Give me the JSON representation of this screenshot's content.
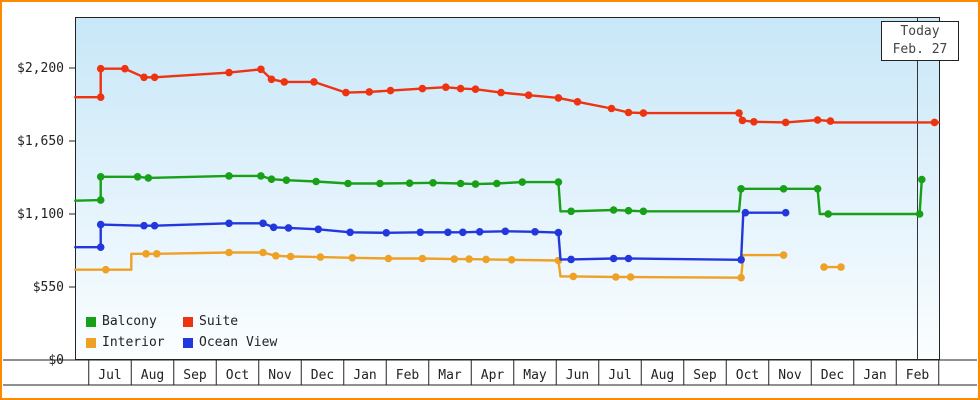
{
  "frame": {
    "border_color": "#ff8a00"
  },
  "chart_data": {
    "type": "line",
    "title": "",
    "y_axis": {
      "tick_values": [
        0,
        550,
        1100,
        1650,
        2200
      ],
      "tick_labels": [
        "$0",
        "$550",
        "$1,100",
        "$1,650",
        "$2,200"
      ],
      "min": 0,
      "max": 2580,
      "grid": false
    },
    "x_axis": {
      "month_labels": [
        "Jul",
        "Aug",
        "Sep",
        "Oct",
        "Nov",
        "Dec",
        "Jan",
        "Feb",
        "Mar",
        "Apr",
        "May",
        "Jun",
        "Jul",
        "Aug",
        "Sep",
        "Oct",
        "Nov",
        "Dec",
        "Jan",
        "Feb"
      ]
    },
    "today_marker": {
      "line1": "Today",
      "line2": "Feb. 27",
      "month_index": 19.5
    },
    "legend": [
      {
        "name": "Balcony",
        "color": "#18a018"
      },
      {
        "name": "Suite",
        "color": "#ee3311"
      },
      {
        "name": "Interior",
        "color": "#efa125"
      },
      {
        "name": "Ocean View",
        "color": "#2238dd"
      }
    ],
    "legend_position": "bottom-left",
    "series": [
      {
        "id": "interior",
        "name": "Interior",
        "color": "#efa125",
        "segments": [
          [
            [
              -0.32,
              680,
              0
            ],
            [
              0.4,
              680,
              1
            ],
            [
              1.0,
              680,
              0
            ],
            [
              1.0,
              800,
              0
            ],
            [
              1.35,
              800,
              1
            ],
            [
              1.6,
              800,
              1
            ],
            [
              3.3,
              810,
              1
            ],
            [
              4.1,
              810,
              1
            ],
            [
              4.4,
              785,
              1
            ],
            [
              4.75,
              780,
              1
            ],
            [
              5.45,
              775,
              1
            ],
            [
              6.2,
              770,
              1
            ],
            [
              7.05,
              765,
              1
            ],
            [
              7.85,
              765,
              1
            ],
            [
              8.6,
              760,
              1
            ],
            [
              8.95,
              760,
              1
            ],
            [
              9.35,
              758,
              1
            ],
            [
              9.95,
              755,
              1
            ],
            [
              11.05,
              750,
              1
            ],
            [
              11.1,
              630,
              0
            ],
            [
              11.4,
              630,
              1
            ],
            [
              12.4,
              625,
              1
            ],
            [
              12.75,
              625,
              1
            ],
            [
              15.35,
              620,
              1
            ],
            [
              15.4,
              790,
              0
            ],
            [
              16.35,
              790,
              1
            ]
          ],
          [
            [
              17.3,
              700,
              1
            ],
            [
              17.7,
              700,
              1
            ]
          ]
        ]
      },
      {
        "id": "ocean-view",
        "name": "Ocean View",
        "color": "#2238dd",
        "segments": [
          [
            [
              -0.32,
              850,
              0
            ],
            [
              0.28,
              850,
              1
            ],
            [
              0.28,
              1020,
              1
            ],
            [
              1.3,
              1012,
              1
            ],
            [
              1.55,
              1012,
              1
            ],
            [
              3.3,
              1030,
              1
            ],
            [
              4.1,
              1030,
              1
            ],
            [
              4.35,
              1000,
              1
            ],
            [
              4.7,
              995,
              1
            ],
            [
              5.4,
              985,
              1
            ],
            [
              6.15,
              962,
              1
            ],
            [
              7.0,
              958,
              1
            ],
            [
              7.8,
              962,
              1
            ],
            [
              8.45,
              962,
              1
            ],
            [
              8.8,
              962,
              1
            ],
            [
              9.2,
              966,
              1
            ],
            [
              9.8,
              970,
              1
            ],
            [
              10.5,
              966,
              1
            ],
            [
              11.05,
              960,
              1
            ],
            [
              11.1,
              758,
              0
            ],
            [
              11.35,
              758,
              1
            ],
            [
              12.35,
              765,
              1
            ],
            [
              12.7,
              765,
              1
            ],
            [
              15.35,
              755,
              1
            ],
            [
              15.4,
              1110,
              0
            ],
            [
              15.45,
              1110,
              1
            ],
            [
              16.4,
              1110,
              1
            ]
          ]
        ]
      },
      {
        "id": "balcony",
        "name": "Balcony",
        "color": "#18a018",
        "segments": [
          [
            [
              -0.32,
              1200,
              0
            ],
            [
              0.28,
              1205,
              1
            ],
            [
              0.28,
              1380,
              1
            ],
            [
              1.15,
              1380,
              1
            ],
            [
              1.4,
              1372,
              1
            ],
            [
              3.3,
              1387,
              1
            ],
            [
              4.05,
              1387,
              1
            ],
            [
              4.3,
              1362,
              1
            ],
            [
              4.65,
              1355,
              1
            ],
            [
              5.35,
              1345,
              1
            ],
            [
              6.1,
              1330,
              1
            ],
            [
              6.85,
              1330,
              1
            ],
            [
              7.55,
              1332,
              1
            ],
            [
              8.1,
              1335,
              1
            ],
            [
              8.75,
              1330,
              1
            ],
            [
              9.1,
              1325,
              1
            ],
            [
              9.6,
              1330,
              1
            ],
            [
              10.2,
              1340,
              1
            ],
            [
              11.05,
              1340,
              1
            ],
            [
              11.1,
              1120,
              0
            ],
            [
              11.35,
              1120,
              1
            ],
            [
              12.35,
              1130,
              1
            ],
            [
              12.7,
              1125,
              1
            ],
            [
              13.05,
              1120,
              1
            ],
            [
              15.3,
              1120,
              0
            ],
            [
              15.35,
              1290,
              1
            ],
            [
              16.35,
              1290,
              1
            ],
            [
              17.15,
              1290,
              1
            ],
            [
              17.2,
              1100,
              0
            ],
            [
              17.4,
              1100,
              1
            ],
            [
              19.55,
              1100,
              1
            ],
            [
              19.6,
              1360,
              1
            ]
          ]
        ]
      },
      {
        "id": "suite",
        "name": "Suite",
        "color": "#ee3311",
        "segments": [
          [
            [
              -0.32,
              1980,
              0
            ],
            [
              0.28,
              1980,
              1
            ],
            [
              0.28,
              2195,
              1
            ],
            [
              0.85,
              2195,
              1
            ],
            [
              1.3,
              2130,
              1
            ],
            [
              1.55,
              2130,
              1
            ],
            [
              3.3,
              2165,
              1
            ],
            [
              4.05,
              2190,
              1
            ],
            [
              4.3,
              2115,
              1
            ],
            [
              4.6,
              2095,
              1
            ],
            [
              5.3,
              2095,
              1
            ],
            [
              6.05,
              2015,
              1
            ],
            [
              6.6,
              2020,
              1
            ],
            [
              7.1,
              2030,
              1
            ],
            [
              7.85,
              2045,
              1
            ],
            [
              8.4,
              2055,
              1
            ],
            [
              8.75,
              2045,
              1
            ],
            [
              9.1,
              2040,
              1
            ],
            [
              9.7,
              2015,
              1
            ],
            [
              10.35,
              1995,
              1
            ],
            [
              11.05,
              1975,
              1
            ],
            [
              11.5,
              1945,
              1
            ],
            [
              12.3,
              1895,
              1
            ],
            [
              12.7,
              1865,
              1
            ],
            [
              13.05,
              1860,
              1
            ],
            [
              15.3,
              1860,
              1
            ],
            [
              15.38,
              1805,
              1
            ],
            [
              15.65,
              1795,
              1
            ],
            [
              16.4,
              1790,
              1
            ],
            [
              17.15,
              1808,
              1
            ],
            [
              17.45,
              1800,
              1
            ],
            [
              17.5,
              1790,
              0
            ],
            [
              19.9,
              1790,
              1
            ],
            [
              20.0,
              1790,
              0
            ]
          ]
        ]
      }
    ]
  }
}
